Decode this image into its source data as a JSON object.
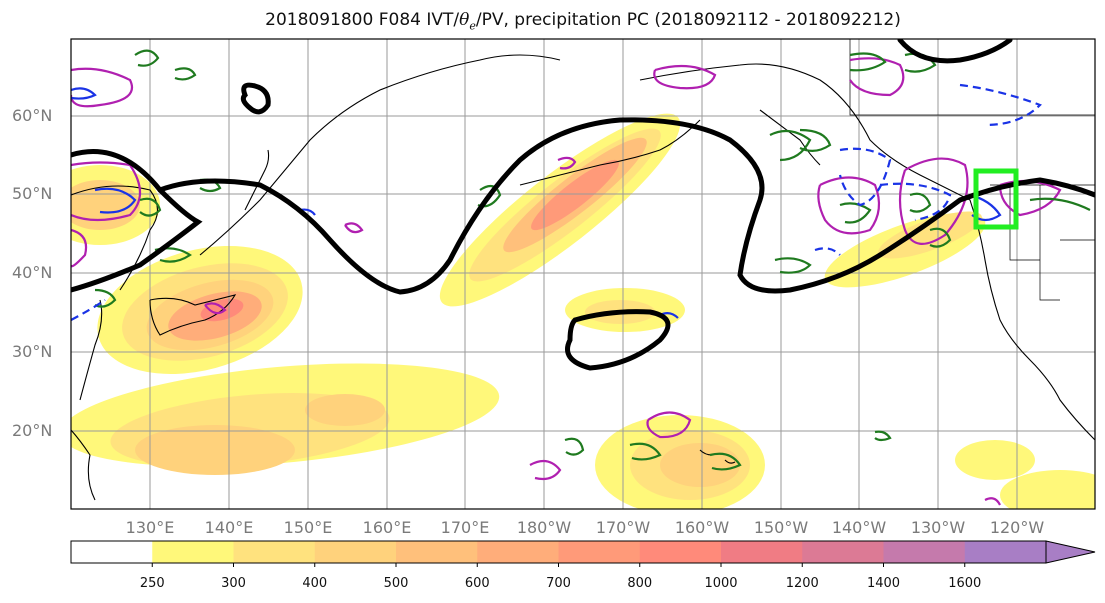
{
  "title": {
    "prefix": "2018091800 F084 IVT/",
    "theta": "θ",
    "theta_sub": "e",
    "suffix": "/PV, precipitation PC (2018092112 - 2018092212)"
  },
  "axes": {
    "lat_labels": [
      "60°N",
      "50°N",
      "40°N",
      "30°N",
      "20°N"
    ],
    "lon_labels": [
      "130°E",
      "140°E",
      "150°E",
      "160°E",
      "170°E",
      "180°W",
      "170°W",
      "160°W",
      "150°W",
      "140°W",
      "130°W",
      "120°W"
    ]
  },
  "colorbar": {
    "levels": [
      "250",
      "300",
      "400",
      "500",
      "600",
      "700",
      "800",
      "1000",
      "1200",
      "1400",
      "1600"
    ],
    "colors": [
      "#ffffff",
      "#fff87a",
      "#ffe27e",
      "#ffd27c",
      "#ffc07b",
      "#ffad7a",
      "#ff9a79",
      "#ff8a7a",
      "#f07c84",
      "#dc7a95",
      "#c57aac",
      "#a87ec5"
    ]
  },
  "colors": {
    "jet_contour": "#000000",
    "positive_contour": "#1f7a1f",
    "negative_contour": "#1a33e6",
    "pv_contour": "#b020b0",
    "highlight_box": "#22ee22",
    "coastline": "#000000"
  }
}
